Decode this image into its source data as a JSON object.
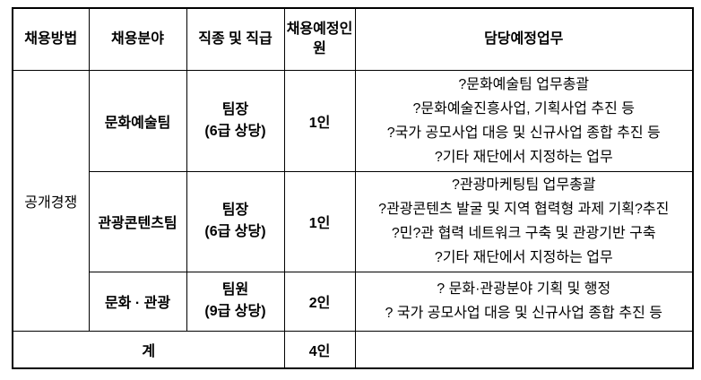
{
  "page": {
    "background_color": "#ffffff",
    "border_color": "#000000"
  },
  "table": {
    "headers": {
      "method": "채용방법",
      "field": "채용분야",
      "job": "직종 및 직급",
      "count": "채용예정인원",
      "duties": "담당예정업무"
    },
    "method_group": "공개경쟁",
    "rows": [
      {
        "field": "문화예술팀",
        "position": "팀장",
        "grade": "(6급 상당)",
        "count": "1인",
        "duties": [
          "?문화예술팀 업무총괄",
          "?문화예술진흥사업, 기획사업 추진 등",
          "?국가 공모사업 대응 및 신규사업 종합 추진 등",
          "?기타 재단에서 지정하는 업무"
        ]
      },
      {
        "field": "관광콘텐츠팀",
        "position": "팀장",
        "grade": "(6급 상당)",
        "count": "1인",
        "duties": [
          "?관광마케팅팀 업무총괄",
          "?관광콘텐츠 발굴 및 지역 협력형 과제 기획?추진",
          "?민?관 협력 네트워크 구축 및 관광기반 구축",
          "?기타 재단에서 지정하는 업무"
        ]
      },
      {
        "field": "문화 · 관광",
        "position": "팀원",
        "grade": "(9급 상당)",
        "count": "2인",
        "duties": [
          "? 문화·관광분야 기획 및 행정",
          "? 국가 공모사업 대응 및 신규사업 종합 추진 등"
        ]
      }
    ],
    "total": {
      "label": "계",
      "count": "4인",
      "duties": ""
    }
  }
}
